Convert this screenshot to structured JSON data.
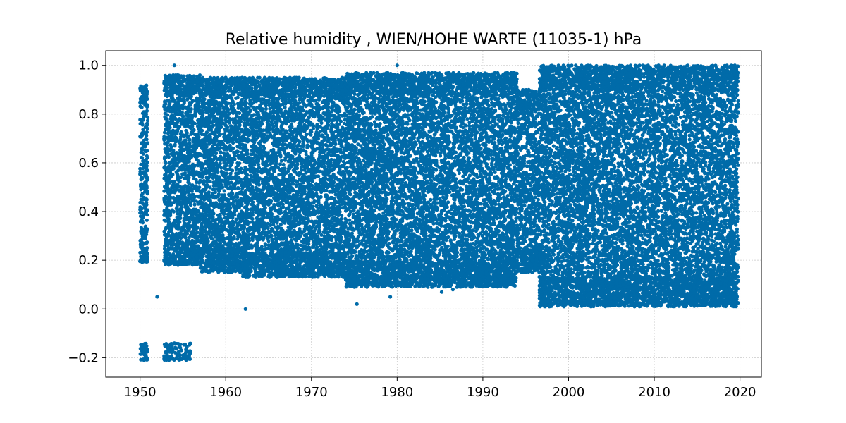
{
  "chart_data": {
    "type": "scatter",
    "title": "Relative humidity , WIEN/HOHE WARTE (11035-1)  hPa",
    "xlabel": "",
    "ylabel": "",
    "xlim": [
      1946.0,
      2022.5
    ],
    "ylim": [
      -0.28,
      1.06
    ],
    "x_ticks": [
      1950,
      1960,
      1970,
      1980,
      1990,
      2000,
      2010,
      2020
    ],
    "x_tick_labels": [
      "1950",
      "1960",
      "1970",
      "1980",
      "1990",
      "2000",
      "2010",
      "2020"
    ],
    "y_ticks": [
      -0.2,
      0.0,
      0.2,
      0.4,
      0.6,
      0.8,
      1.0
    ],
    "y_tick_labels": [
      "−0.2",
      "0.0",
      "0.2",
      "0.4",
      "0.6",
      "0.8",
      "1.0"
    ],
    "grid": true,
    "legend": "none",
    "marker_color": "#006BA9",
    "series": [
      {
        "segments": [
          {
            "x_start": 1950.0,
            "x_end": 1950.9,
            "y_min": 0.19,
            "y_max": 0.92
          },
          {
            "x_start": 1950.0,
            "x_end": 1950.9,
            "y_min": -0.21,
            "y_max": -0.14
          },
          {
            "x_start": 1952.8,
            "x_end": 1956.0,
            "y_min": -0.21,
            "y_max": -0.14
          },
          {
            "x_start": 1952.8,
            "x_end": 1957.0,
            "y_min": 0.18,
            "y_max": 0.96
          },
          {
            "x_start": 1957.0,
            "x_end": 1962.0,
            "y_min": 0.15,
            "y_max": 0.95
          },
          {
            "x_start": 1962.0,
            "x_end": 1974.0,
            "y_min": 0.13,
            "y_max": 0.95
          },
          {
            "x_start": 1974.0,
            "x_end": 1994.0,
            "y_min": 0.09,
            "y_max": 0.97
          },
          {
            "x_start": 1994.0,
            "x_end": 1996.6,
            "y_min": 0.15,
            "y_max": 0.9
          },
          {
            "x_start": 1996.6,
            "x_end": 2019.8,
            "y_min": 0.01,
            "y_max": 1.0
          }
        ],
        "outliers": [
          {
            "x": 1952.0,
            "y": 0.05
          },
          {
            "x": 1962.3,
            "y": 0.0
          },
          {
            "x": 1975.3,
            "y": 0.02
          },
          {
            "x": 1979.2,
            "y": 0.05
          },
          {
            "x": 1954.0,
            "y": 1.0
          },
          {
            "x": 1980.0,
            "y": 1.0
          },
          {
            "x": 1985.2,
            "y": 0.07
          },
          {
            "x": 1986.5,
            "y": 0.08
          }
        ]
      }
    ]
  }
}
